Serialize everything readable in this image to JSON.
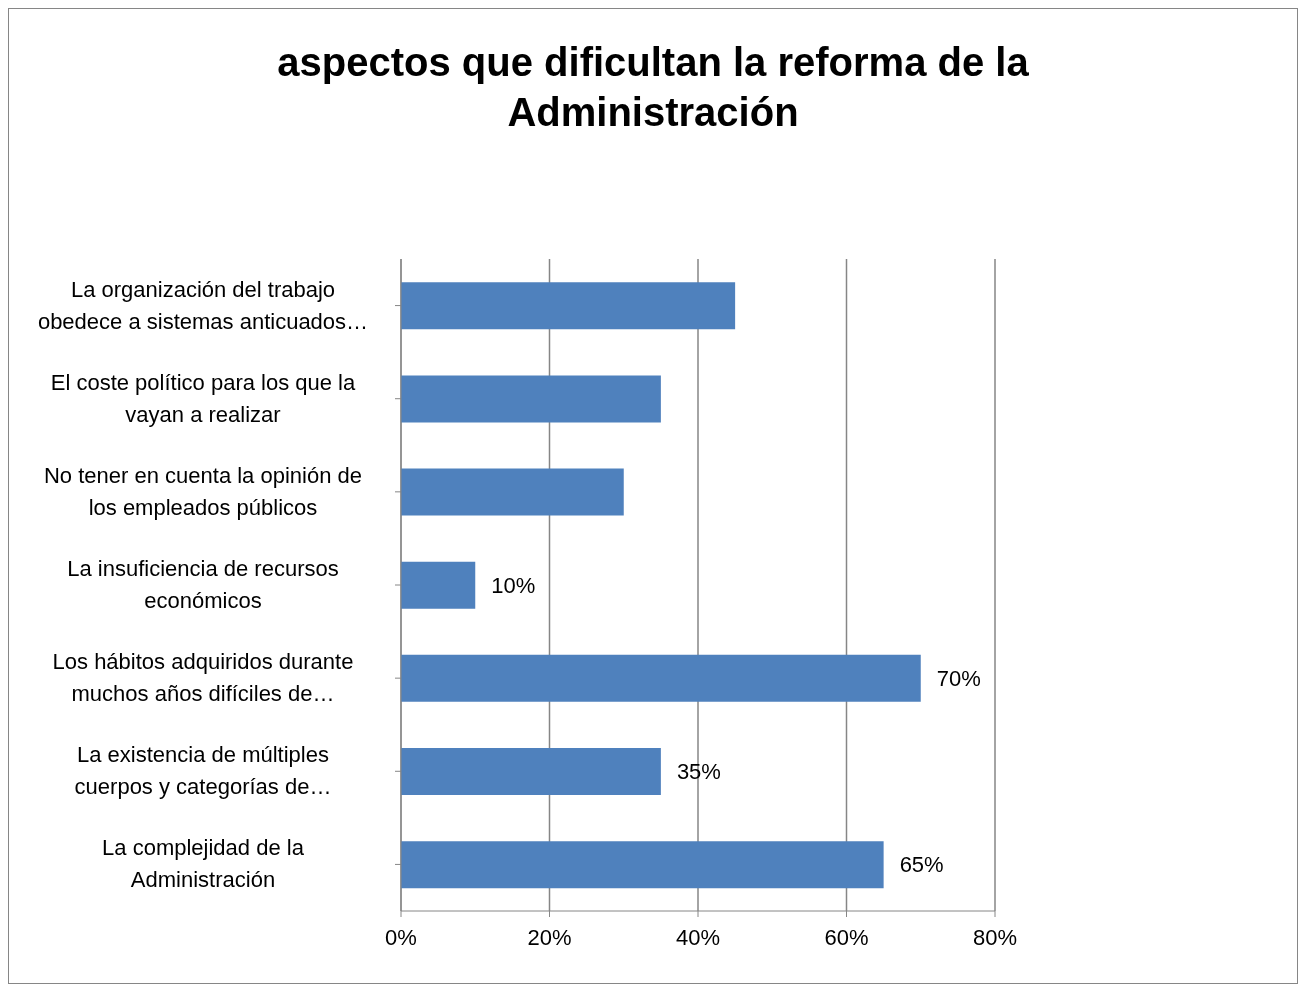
{
  "chart_data": {
    "type": "bar",
    "orientation": "horizontal",
    "title": "aspectos que dificultan la reforma de la Administración",
    "categories": [
      "La organización del trabajo obedece a sistemas anticuados…",
      "El coste político para los que la vayan a realizar",
      "No tener en cuenta la opinión de los empleados públicos",
      "La insuficiencia de recursos económicos",
      "Los hábitos adquiridos durante muchos años difíciles de…",
      "La existencia de múltiples cuerpos y categorías de…",
      "La complejidad  de la Administración"
    ],
    "values": [
      45,
      35,
      30,
      10,
      70,
      35,
      65
    ],
    "value_labels": [
      null,
      null,
      null,
      "10%",
      "70%",
      "35%",
      "65%"
    ],
    "color": "#4f81bd",
    "xlim": [
      0,
      80
    ],
    "xticks": [
      {
        "value": 0,
        "label": "0%"
      },
      {
        "value": 20,
        "label": "20%"
      },
      {
        "value": 40,
        "label": "40%"
      },
      {
        "value": 60,
        "label": "60%"
      },
      {
        "value": 80,
        "label": "80%"
      }
    ],
    "grid": "x",
    "legend": false
  }
}
